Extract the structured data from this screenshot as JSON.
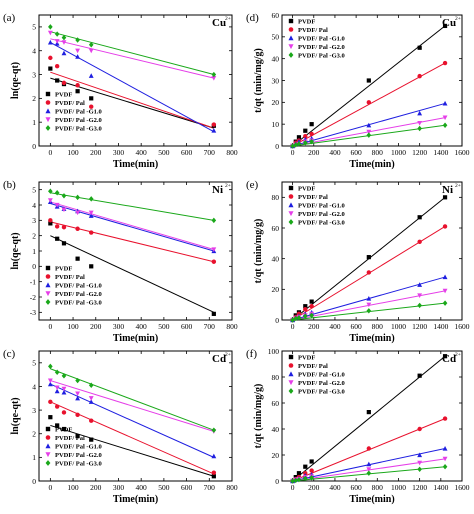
{
  "figure": {
    "legend_markers": {
      "PVDF": "square",
      "PVDF/ Pal": "circle",
      "PVDF/ Pal -G1.0": "triangle-up",
      "PVDF/ Pal -G2.0": "triangle-down",
      "PVDF/ Pal -G3.0": "diamond"
    },
    "series_colors": {
      "PVDF": "#000000",
      "PVDF/ Pal": "#e8112d",
      "PVDF/ Pal -G1.0": "#1f1fe0",
      "PVDF/ Pal -G2.0": "#e53ee8",
      "PVDF/ Pal -G3.0": "#1aa81a"
    }
  },
  "chart_data": [
    {
      "panel": "(a)",
      "ion": "Cu",
      "charge": "2+",
      "type": "scatter",
      "fit": "linear",
      "xlabel": "Time(min)",
      "ylabel": "ln(qe-qt)",
      "xlim": [
        -50,
        800
      ],
      "ylim": [
        0,
        5.5
      ],
      "xticks": [
        0,
        100,
        200,
        300,
        400,
        500,
        600,
        700,
        800
      ],
      "yticks": [
        0,
        1,
        2,
        3,
        4,
        5
      ],
      "legend_position": "bottom-left",
      "series": [
        {
          "name": "PVDF",
          "x": [
            0,
            30,
            60,
            120,
            180,
            720
          ],
          "y": [
            3.25,
            2.75,
            2.6,
            2.3,
            2.0,
            0.85
          ],
          "fit": [
            [
              0,
              2.85
            ],
            [
              720,
              0.75
            ]
          ]
        },
        {
          "name": "PVDF/ Pal",
          "x": [
            0,
            30,
            60,
            120,
            180,
            720
          ],
          "y": [
            3.7,
            3.35,
            2.65,
            2.55,
            1.65,
            0.9
          ],
          "fit": [
            [
              0,
              3.1
            ],
            [
              720,
              0.75
            ]
          ]
        },
        {
          "name": "PVDF/ Pal -G1.0",
          "x": [
            0,
            30,
            60,
            120,
            180,
            720
          ],
          "y": [
            4.35,
            4.3,
            3.9,
            3.75,
            2.95,
            0.65
          ],
          "fit": [
            [
              0,
              4.35
            ],
            [
              720,
              0.6
            ]
          ]
        },
        {
          "name": "PVDF/ Pal -G2.0",
          "x": [
            0,
            30,
            60,
            120,
            180,
            720
          ],
          "y": [
            4.75,
            4.4,
            4.35,
            4.0,
            4.0,
            2.85
          ],
          "fit": [
            [
              0,
              4.5
            ],
            [
              720,
              2.85
            ]
          ]
        },
        {
          "name": "PVDF/ Pal -G3.0",
          "x": [
            0,
            30,
            60,
            120,
            180,
            720
          ],
          "y": [
            5.0,
            4.7,
            4.55,
            4.45,
            4.25,
            3.0
          ],
          "fit": [
            [
              0,
              4.8
            ],
            [
              720,
              3.0
            ]
          ]
        }
      ]
    },
    {
      "panel": "(d)",
      "ion": "Cu",
      "charge": "2+",
      "type": "scatter",
      "fit": "linear",
      "xlabel": "Time(min)",
      "ylabel": "t/qt (min/mg/g)",
      "xlim": [
        -100,
        1600
      ],
      "ylim": [
        0,
        60
      ],
      "xticks": [
        0,
        200,
        400,
        600,
        800,
        1000,
        1200,
        1400,
        1600
      ],
      "yticks": [
        0,
        10,
        20,
        30,
        40,
        50,
        60
      ],
      "legend_position": "top-left",
      "series": [
        {
          "name": "PVDF",
          "x": [
            0,
            30,
            60,
            120,
            180,
            720,
            1200,
            1440
          ],
          "y": [
            0,
            2,
            4,
            7,
            10,
            30,
            45,
            55
          ],
          "fit": [
            [
              0,
              0
            ],
            [
              1440,
              55
            ]
          ]
        },
        {
          "name": "PVDF/ Pal",
          "x": [
            0,
            30,
            60,
            120,
            180,
            720,
            1200,
            1440
          ],
          "y": [
            0,
            1.5,
            2.5,
            4.5,
            5.5,
            20,
            32,
            38
          ],
          "fit": [
            [
              0,
              0
            ],
            [
              1440,
              38
            ]
          ]
        },
        {
          "name": "PVDF/ Pal -G1.0",
          "x": [
            0,
            30,
            60,
            120,
            180,
            720,
            1200,
            1440
          ],
          "y": [
            0,
            1,
            2,
            3,
            3.5,
            9.5,
            15,
            19.5
          ],
          "fit": [
            [
              0,
              0
            ],
            [
              1440,
              19.5
            ]
          ]
        },
        {
          "name": "PVDF/ Pal -G2.0",
          "x": [
            0,
            30,
            60,
            120,
            180,
            720,
            1200,
            1440
          ],
          "y": [
            0,
            0.5,
            1,
            2,
            2.5,
            6.5,
            10.5,
            13
          ],
          "fit": [
            [
              0,
              0
            ],
            [
              1440,
              13
            ]
          ]
        },
        {
          "name": "PVDF/ Pal -G3.0",
          "x": [
            0,
            30,
            60,
            120,
            180,
            720,
            1200,
            1440
          ],
          "y": [
            0,
            0.5,
            1,
            1.5,
            2,
            5,
            8,
            9.5
          ],
          "fit": [
            [
              0,
              0
            ],
            [
              1440,
              9.5
            ]
          ]
        }
      ]
    },
    {
      "panel": "(b)",
      "ion": "Ni",
      "charge": "2+",
      "type": "scatter",
      "fit": "linear",
      "xlabel": "Time(min)",
      "ylabel": "ln(qe-qt)",
      "xlim": [
        -50,
        800
      ],
      "ylim": [
        -3.5,
        5.5
      ],
      "xticks": [
        0,
        100,
        200,
        300,
        400,
        500,
        600,
        700,
        800
      ],
      "yticks": [
        -3,
        -2,
        -1,
        0,
        1,
        2,
        3,
        4,
        5
      ],
      "legend_position": "bottom-left",
      "series": [
        {
          "name": "PVDF",
          "x": [
            0,
            30,
            60,
            120,
            180,
            720
          ],
          "y": [
            2.8,
            1.8,
            1.5,
            0.5,
            0.0,
            -3.1
          ],
          "fit": [
            [
              0,
              2.0
            ],
            [
              720,
              -3.0
            ]
          ]
        },
        {
          "name": "PVDF/ Pal",
          "x": [
            0,
            30,
            60,
            120,
            180,
            720
          ],
          "y": [
            3.0,
            2.6,
            2.55,
            2.45,
            2.2,
            0.3
          ],
          "fit": [
            [
              0,
              2.9
            ],
            [
              720,
              0.3
            ]
          ]
        },
        {
          "name": "PVDF/ Pal -G1.0",
          "x": [
            0,
            30,
            60,
            120,
            180,
            720
          ],
          "y": [
            4.2,
            3.9,
            3.75,
            3.6,
            3.3,
            1.0
          ],
          "fit": [
            [
              0,
              4.1
            ],
            [
              720,
              1.0
            ]
          ]
        },
        {
          "name": "PVDF/ Pal -G2.0",
          "x": [
            0,
            30,
            60,
            120,
            180,
            720
          ],
          "y": [
            4.3,
            4.0,
            3.7,
            3.5,
            3.5,
            1.1
          ],
          "fit": [
            [
              0,
              4.2
            ],
            [
              720,
              1.1
            ]
          ]
        },
        {
          "name": "PVDF/ Pal -G3.0",
          "x": [
            0,
            30,
            60,
            120,
            180,
            720
          ],
          "y": [
            4.9,
            4.8,
            4.6,
            4.5,
            4.4,
            3.0
          ],
          "fit": [
            [
              0,
              4.8
            ],
            [
              720,
              3.0
            ]
          ]
        }
      ]
    },
    {
      "panel": "(e)",
      "ion": "Ni",
      "charge": "2+",
      "type": "scatter",
      "fit": "linear",
      "xlabel": "Time(min)",
      "ylabel": "t/qt (min/mg/g)",
      "xlim": [
        -100,
        1600
      ],
      "ylim": [
        0,
        90
      ],
      "xticks": [
        0,
        200,
        400,
        600,
        800,
        1000,
        1200,
        1400,
        1600
      ],
      "yticks": [
        0,
        20,
        40,
        60,
        80
      ],
      "legend_position": "top-left",
      "series": [
        {
          "name": "PVDF",
          "x": [
            0,
            30,
            60,
            120,
            180,
            720,
            1200,
            1440
          ],
          "y": [
            0,
            3,
            5,
            9,
            12,
            41,
            67,
            80
          ],
          "fit": [
            [
              0,
              0
            ],
            [
              1440,
              80
            ]
          ]
        },
        {
          "name": "PVDF/ Pal",
          "x": [
            0,
            30,
            60,
            120,
            180,
            720,
            1200,
            1440
          ],
          "y": [
            0,
            2,
            4,
            7,
            9,
            31,
            51,
            61
          ],
          "fit": [
            [
              0,
              0
            ],
            [
              1440,
              61
            ]
          ]
        },
        {
          "name": "PVDF/ Pal -G1.0",
          "x": [
            0,
            30,
            60,
            120,
            180,
            720,
            1200,
            1440
          ],
          "y": [
            0,
            1.5,
            2.5,
            4,
            5,
            14,
            23,
            28
          ],
          "fit": [
            [
              0,
              0
            ],
            [
              1440,
              28
            ]
          ]
        },
        {
          "name": "PVDF/ Pal -G2.0",
          "x": [
            0,
            30,
            60,
            120,
            180,
            720,
            1200,
            1440
          ],
          "y": [
            0,
            1,
            2,
            3,
            4,
            10,
            16,
            19
          ],
          "fit": [
            [
              0,
              0
            ],
            [
              1440,
              19
            ]
          ]
        },
        {
          "name": "PVDF/ Pal -G3.0",
          "x": [
            0,
            30,
            60,
            120,
            180,
            720,
            1200,
            1440
          ],
          "y": [
            0,
            1,
            1.5,
            2.5,
            3,
            6,
            9.5,
            11
          ],
          "fit": [
            [
              0,
              0
            ],
            [
              1440,
              11
            ]
          ]
        }
      ]
    },
    {
      "panel": "(c)",
      "ion": "Cd",
      "charge": "2+",
      "type": "scatter",
      "fit": "linear",
      "xlabel": "Time(min)",
      "ylabel": "ln(qe-qt)",
      "xlim": [
        -50,
        800
      ],
      "ylim": [
        0,
        5.5
      ],
      "xticks": [
        0,
        100,
        200,
        300,
        400,
        500,
        600,
        700,
        800
      ],
      "yticks": [
        0,
        1,
        2,
        3,
        4,
        5
      ],
      "legend_position": "bottom-left",
      "series": [
        {
          "name": "PVDF",
          "x": [
            0,
            30,
            60,
            120,
            180,
            720
          ],
          "y": [
            2.7,
            2.35,
            2.2,
            1.9,
            1.75,
            0.2
          ],
          "fit": [
            [
              0,
              2.35
            ],
            [
              720,
              0.2
            ]
          ]
        },
        {
          "name": "PVDF/ Pal",
          "x": [
            0,
            30,
            60,
            120,
            180,
            720
          ],
          "y": [
            3.35,
            3.15,
            2.9,
            2.8,
            2.55,
            0.35
          ],
          "fit": [
            [
              0,
              3.35
            ],
            [
              720,
              0.3
            ]
          ]
        },
        {
          "name": "PVDF/ Pal -G1.0",
          "x": [
            0,
            30,
            60,
            120,
            180,
            720
          ],
          "y": [
            4.1,
            3.8,
            3.75,
            3.5,
            3.35,
            1.05
          ],
          "fit": [
            [
              0,
              4.1
            ],
            [
              720,
              1.0
            ]
          ]
        },
        {
          "name": "PVDF/ Pal -G2.0",
          "x": [
            0,
            30,
            60,
            120,
            180,
            720
          ],
          "y": [
            4.25,
            3.95,
            3.9,
            3.7,
            3.5,
            2.1
          ],
          "fit": [
            [
              0,
              4.25
            ],
            [
              720,
              2.1
            ]
          ]
        },
        {
          "name": "PVDF/ Pal -G3.0",
          "x": [
            0,
            30,
            60,
            120,
            180,
            720
          ],
          "y": [
            4.85,
            4.6,
            4.45,
            4.25,
            4.05,
            2.15
          ],
          "fit": [
            [
              0,
              4.75
            ],
            [
              720,
              2.15
            ]
          ]
        }
      ]
    },
    {
      "panel": "(f)",
      "ion": "Cd",
      "charge": "2+",
      "type": "scatter",
      "fit": "linear",
      "xlabel": "Time(min)",
      "ylabel": "t/qt (min/mg/g)",
      "xlim": [
        -100,
        1600
      ],
      "ylim": [
        0,
        100
      ],
      "xticks": [
        0,
        200,
        400,
        600,
        800,
        1000,
        1200,
        1400,
        1600
      ],
      "yticks": [
        0,
        20,
        40,
        60,
        80,
        100
      ],
      "legend_position": "top-left",
      "series": [
        {
          "name": "PVDF",
          "x": [
            0,
            30,
            60,
            120,
            180,
            720,
            1200,
            1440
          ],
          "y": [
            0,
            3,
            6,
            11,
            15,
            53,
            81,
            96
          ],
          "fit": [
            [
              0,
              0
            ],
            [
              1440,
              96
            ]
          ]
        },
        {
          "name": "PVDF/ Pal",
          "x": [
            0,
            30,
            60,
            120,
            180,
            720,
            1200,
            1440
          ],
          "y": [
            0,
            1.5,
            3,
            6,
            8,
            25,
            40,
            48
          ],
          "fit": [
            [
              0,
              0
            ],
            [
              1440,
              48
            ]
          ]
        },
        {
          "name": "PVDF/ Pal -G1.0",
          "x": [
            0,
            30,
            60,
            120,
            180,
            720,
            1200,
            1440
          ],
          "y": [
            0,
            1,
            2,
            4,
            5,
            13,
            20,
            25
          ],
          "fit": [
            [
              0,
              0
            ],
            [
              1440,
              25
            ]
          ]
        },
        {
          "name": "PVDF/ Pal -G2.0",
          "x": [
            0,
            30,
            60,
            120,
            180,
            720,
            1200,
            1440
          ],
          "y": [
            0,
            1,
            1.5,
            3,
            3.5,
            9,
            14,
            17
          ],
          "fit": [
            [
              0,
              0
            ],
            [
              1440,
              17
            ]
          ]
        },
        {
          "name": "PVDF/ Pal -G3.0",
          "x": [
            0,
            30,
            60,
            120,
            180,
            720,
            1200,
            1440
          ],
          "y": [
            0,
            0.5,
            1,
            2,
            2.5,
            6,
            9,
            11
          ],
          "fit": [
            [
              0,
              0
            ],
            [
              1440,
              11
            ]
          ]
        }
      ]
    }
  ]
}
